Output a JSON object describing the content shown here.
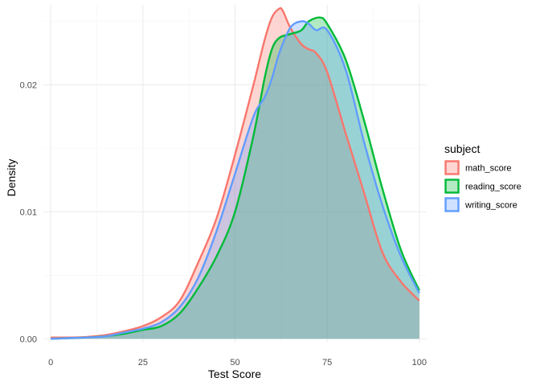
{
  "chart_data": {
    "type": "area",
    "title": "",
    "xlabel": "Test Score",
    "ylabel": "Density",
    "xlim": [
      -2,
      102
    ],
    "ylim": [
      -0.0003,
      0.0263
    ],
    "x_ticks": [
      0,
      25,
      50,
      75,
      100
    ],
    "x_tick_labels": [
      "0",
      "25",
      "50",
      "75",
      "100"
    ],
    "y_ticks": [
      0.0,
      0.01,
      0.02
    ],
    "y_tick_labels": [
      "0.00",
      "0.01",
      "0.02"
    ],
    "grid": true,
    "legend": {
      "title": "subject",
      "position": "right"
    },
    "series": [
      {
        "name": "math_score",
        "color": "#F8766D",
        "fill_opacity": 0.3,
        "x": [
          0,
          5,
          10,
          15,
          20,
          25,
          30,
          35,
          40,
          45,
          50,
          55,
          58,
          60,
          62,
          63,
          65,
          68,
          70,
          72,
          75,
          80,
          85,
          90,
          95,
          100
        ],
        "y": [
          0.0001,
          0.0001,
          0.00015,
          0.0003,
          0.0006,
          0.001,
          0.0017,
          0.003,
          0.006,
          0.0095,
          0.0145,
          0.02,
          0.0235,
          0.0253,
          0.026,
          0.0258,
          0.0245,
          0.0232,
          0.0228,
          0.0225,
          0.021,
          0.0162,
          0.0115,
          0.0068,
          0.0045,
          0.003
        ]
      },
      {
        "name": "reading_score",
        "color": "#00BA38",
        "fill_opacity": 0.3,
        "x": [
          0,
          5,
          10,
          15,
          20,
          25,
          30,
          35,
          40,
          45,
          50,
          55,
          58,
          60,
          62,
          65,
          68,
          70,
          73,
          75,
          80,
          85,
          90,
          95,
          100
        ],
        "y": [
          0.0,
          5e-05,
          0.0001,
          0.0002,
          0.0004,
          0.0007,
          0.001,
          0.002,
          0.004,
          0.0065,
          0.01,
          0.016,
          0.0205,
          0.0228,
          0.0237,
          0.024,
          0.0243,
          0.025,
          0.0253,
          0.0248,
          0.022,
          0.0172,
          0.0118,
          0.007,
          0.0038
        ]
      },
      {
        "name": "writing_score",
        "color": "#619CFF",
        "fill_opacity": 0.3,
        "x": [
          0,
          5,
          10,
          15,
          20,
          25,
          30,
          35,
          40,
          45,
          50,
          55,
          58,
          60,
          62,
          65,
          68,
          70,
          72,
          75,
          80,
          85,
          90,
          95,
          100
        ],
        "y": [
          0.0,
          5e-05,
          0.0001,
          0.0002,
          0.0005,
          0.0008,
          0.0013,
          0.0025,
          0.0048,
          0.0085,
          0.013,
          0.0175,
          0.019,
          0.0205,
          0.0225,
          0.0245,
          0.025,
          0.0248,
          0.0243,
          0.0243,
          0.0212,
          0.0155,
          0.0105,
          0.0065,
          0.0036
        ]
      }
    ],
    "overlap_color": "#9BAFB3"
  }
}
